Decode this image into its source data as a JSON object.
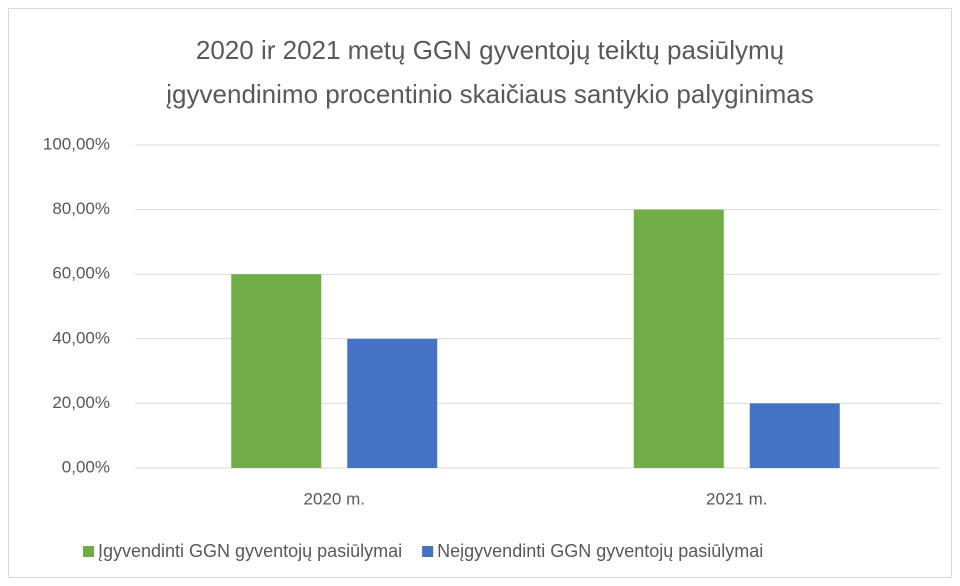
{
  "chart_data": {
    "type": "bar",
    "title": [
      "2020 ir 2021 metų GGN gyventojų teiktų pasiūlymų",
      "įgyvendinimo procentinio skaičiaus santykio palyginimas"
    ],
    "categories": [
      "2020 m.",
      "2021 m."
    ],
    "series": [
      {
        "name": "Įgyvendinti GGN gyventojų pasiūlymai",
        "color": "#70ad47",
        "values": [
          60,
          80
        ]
      },
      {
        "name": "Neįgyvendinti GGN gyventojų pasiūlymai",
        "color": "#4472c4",
        "values": [
          40,
          20
        ]
      }
    ],
    "ylim": [
      0,
      100
    ],
    "yticks": [
      {
        "value": 0,
        "label": "0,00%"
      },
      {
        "value": 20,
        "label": "20,00%"
      },
      {
        "value": 40,
        "label": "40,00%"
      },
      {
        "value": 60,
        "label": "60,00%"
      },
      {
        "value": 80,
        "label": "80,00%"
      },
      {
        "value": 100,
        "label": "100,00%"
      }
    ],
    "grid": true,
    "legend": "bottom"
  }
}
